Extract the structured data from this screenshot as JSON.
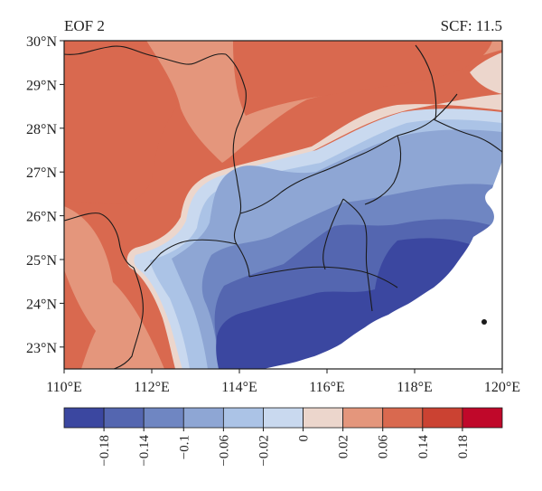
{
  "figure": {
    "panel_label": "EOF 2",
    "scf_label": "SCF: 11.5"
  },
  "map": {
    "lon_range": [
      110,
      120
    ],
    "lat_range": [
      22.5,
      30
    ],
    "lon_ticks": [
      "110°E",
      "112°E",
      "114°E",
      "116°E",
      "118°E",
      "120°E"
    ],
    "lat_ticks": [
      "30°N",
      "29°N",
      "28°N",
      "27°N",
      "26°N",
      "25°N",
      "24°N",
      "23°N"
    ],
    "ocean_color": "#ffffff",
    "border_color": "#1a1a1a"
  },
  "colorbar": {
    "colors": [
      "#3b47a0",
      "#5466b0",
      "#6f86c2",
      "#8ea6d4",
      "#abc3e6",
      "#c9d9ef",
      "#ecd6cc",
      "#e4967c",
      "#d9694f",
      "#cb4232",
      "#c0082a"
    ],
    "tick_labels": [
      "−0.18",
      "−0.14",
      "−0.1",
      "−0.06",
      "−0.02",
      "0",
      "0.02",
      "0.06",
      "0.14",
      "0.18"
    ]
  }
}
